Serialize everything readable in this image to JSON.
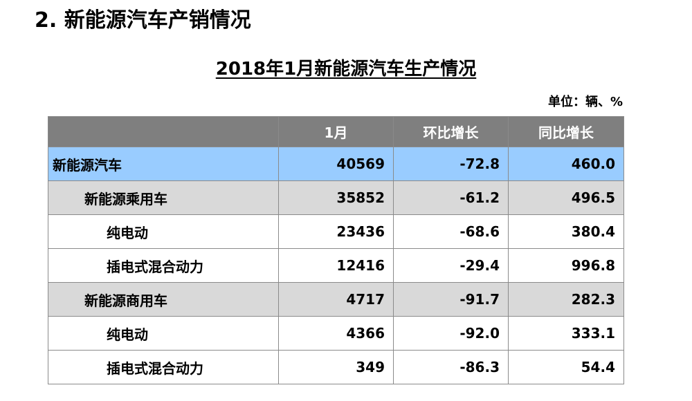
{
  "section": {
    "title": "2. 新能源汽车产销情况"
  },
  "table": {
    "title": "2018年1月新能源汽车生产情况",
    "unit": "单位：辆、%",
    "headers": [
      "",
      "1月",
      "环比增长",
      "同比增长"
    ],
    "rows": [
      {
        "label": "新能源汽车",
        "values": [
          "40569",
          "-72.8",
          "460.0"
        ],
        "level": 0
      },
      {
        "label": "新能源乘用车",
        "values": [
          "35852",
          "-61.2",
          "496.5"
        ],
        "level": 1
      },
      {
        "label": "纯电动",
        "values": [
          "23436",
          "-68.6",
          "380.4"
        ],
        "level": 2
      },
      {
        "label": "插电式混合动力",
        "values": [
          "12416",
          "-29.4",
          "996.8"
        ],
        "level": 2
      },
      {
        "label": "新能源商用车",
        "values": [
          "4717",
          "-91.7",
          "282.3"
        ],
        "level": 1
      },
      {
        "label": "纯电动",
        "values": [
          "4366",
          "-92.0",
          "333.1"
        ],
        "level": 2
      },
      {
        "label": "插电式混合动力",
        "values": [
          "349",
          "-86.3",
          "54.4"
        ],
        "level": 2
      }
    ],
    "colors": {
      "header_bg": "#7f7f7f",
      "level0_bg": "#99ccff",
      "level1_bg": "#d9d9d9",
      "level2_bg": "#ffffff"
    }
  }
}
